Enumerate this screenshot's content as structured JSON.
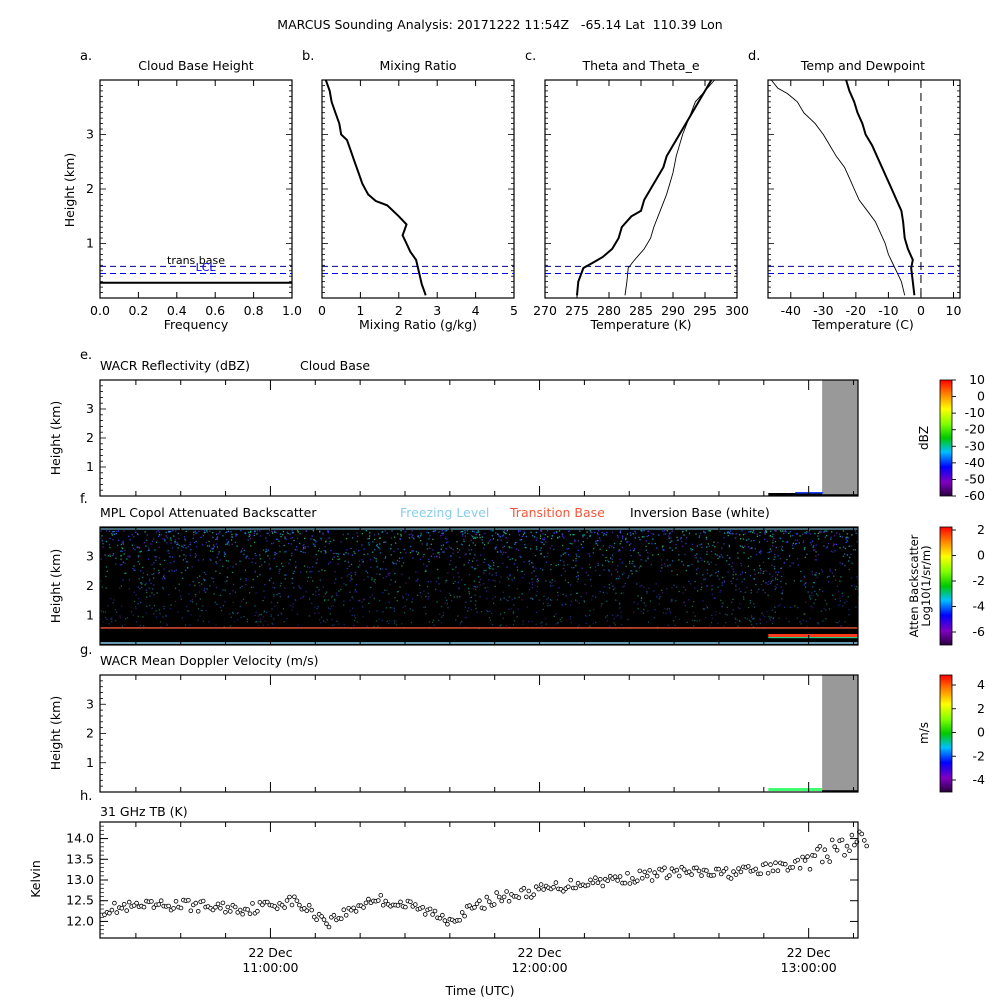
{
  "figure": {
    "title": "MARCUS Sounding Analysis: 20171222 11:54Z   -65.14 Lat  110.39 Lon"
  },
  "colors": {
    "freezing_level": "#87ceeb",
    "transition_base": "#f4563a",
    "inversion_base": "#ffffff",
    "lcl_line": "#0000ff",
    "dark_line": "#00008b",
    "mpl_background": "#000000",
    "missing_data": "#999999"
  },
  "chart_data": [
    {
      "id": "a",
      "panel_letter": "a.",
      "type": "line",
      "title": "Cloud Base Height",
      "xlabel": "Frequency",
      "ylabel": "Height (km)",
      "xlim": [
        0,
        1
      ],
      "ylim": [
        0,
        4
      ],
      "xticks": [
        "0.0",
        "0.2",
        "0.4",
        "0.6",
        "0.8",
        "1.0"
      ],
      "yticks": [
        "1",
        "2",
        "3"
      ],
      "series": [
        {
          "values": [
            [
              0,
              0.28
            ],
            [
              1,
              0.28
            ]
          ]
        }
      ],
      "annotations": [
        {
          "text": "trans base",
          "x": 0.5,
          "y": 0.62,
          "color": "#000000"
        },
        {
          "text": "LCL",
          "x": 0.55,
          "y": 0.5,
          "color": "#0000ff"
        }
      ],
      "reference_lines": [
        {
          "y": 0.58,
          "color": "#00008b",
          "style": "dashed"
        },
        {
          "y": 0.45,
          "color": "#0000ff",
          "style": "dashed"
        }
      ]
    },
    {
      "id": "b",
      "panel_letter": "b.",
      "type": "line",
      "title": "Mixing Ratio",
      "xlabel": "Mixing Ratio (g/kg)",
      "ylabel": "",
      "xlim": [
        0,
        5
      ],
      "ylim": [
        0,
        4
      ],
      "xticks": [
        "0",
        "1",
        "2",
        "3",
        "4",
        "5"
      ],
      "yticks": [],
      "series": [
        {
          "values": [
            [
              2.7,
              0.05
            ],
            [
              2.65,
              0.15
            ],
            [
              2.6,
              0.25
            ],
            [
              2.55,
              0.4
            ],
            [
              2.5,
              0.55
            ],
            [
              2.45,
              0.7
            ],
            [
              2.3,
              0.85
            ],
            [
              2.2,
              1.0
            ],
            [
              2.1,
              1.15
            ],
            [
              2.15,
              1.25
            ],
            [
              2.2,
              1.35
            ],
            [
              2.0,
              1.5
            ],
            [
              1.7,
              1.7
            ],
            [
              1.4,
              1.78
            ],
            [
              1.2,
              1.9
            ],
            [
              1.05,
              2.1
            ],
            [
              0.95,
              2.3
            ],
            [
              0.85,
              2.5
            ],
            [
              0.75,
              2.7
            ],
            [
              0.65,
              2.9
            ],
            [
              0.5,
              3.0
            ],
            [
              0.45,
              3.2
            ],
            [
              0.35,
              3.4
            ],
            [
              0.25,
              3.6
            ],
            [
              0.2,
              3.8
            ],
            [
              0.1,
              4.0
            ]
          ]
        }
      ],
      "reference_lines": [
        {
          "y": 0.58,
          "color": "#00008b",
          "style": "dashed"
        },
        {
          "y": 0.45,
          "color": "#0000ff",
          "style": "dashed"
        }
      ]
    },
    {
      "id": "c",
      "panel_letter": "c.",
      "type": "line",
      "title": "Theta and Theta_e",
      "xlabel": "Temperature (K)",
      "ylabel": "",
      "xlim": [
        270,
        300
      ],
      "ylim": [
        0,
        4
      ],
      "xticks": [
        "270",
        "275",
        "280",
        "285",
        "290",
        "295",
        "300"
      ],
      "yticks": [],
      "series": [
        {
          "values": [
            [
              275.0,
              0.05
            ],
            [
              275.2,
              0.3
            ],
            [
              276.0,
              0.55
            ],
            [
              277.5,
              0.65
            ],
            [
              279.0,
              0.75
            ],
            [
              280.5,
              0.9
            ],
            [
              281.5,
              1.1
            ],
            [
              282.0,
              1.3
            ],
            [
              283.5,
              1.5
            ],
            [
              285.0,
              1.6
            ],
            [
              285.5,
              1.8
            ],
            [
              286.5,
              2.0
            ],
            [
              287.5,
              2.2
            ],
            [
              288.5,
              2.4
            ],
            [
              289.0,
              2.6
            ],
            [
              290.0,
              2.8
            ],
            [
              291.0,
              3.0
            ],
            [
              292.0,
              3.2
            ],
            [
              293.0,
              3.4
            ],
            [
              294.0,
              3.6
            ],
            [
              295.0,
              3.8
            ],
            [
              296.0,
              4.0
            ]
          ]
        },
        {
          "values": [
            [
              282.5,
              0.05
            ],
            [
              282.8,
              0.3
            ],
            [
              283.0,
              0.55
            ],
            [
              284.0,
              0.7
            ],
            [
              285.5,
              0.9
            ],
            [
              286.5,
              1.1
            ],
            [
              287.0,
              1.3
            ],
            [
              288.0,
              1.6
            ],
            [
              289.0,
              1.9
            ],
            [
              289.5,
              2.1
            ],
            [
              290.0,
              2.3
            ],
            [
              290.5,
              2.6
            ],
            [
              291.5,
              3.0
            ],
            [
              292.5,
              3.3
            ],
            [
              293.5,
              3.6
            ],
            [
              295.0,
              3.8
            ],
            [
              296.5,
              4.0
            ]
          ]
        }
      ],
      "reference_lines": [
        {
          "y": 0.58,
          "color": "#00008b",
          "style": "dashed"
        },
        {
          "y": 0.45,
          "color": "#0000ff",
          "style": "dashed"
        }
      ]
    },
    {
      "id": "d",
      "panel_letter": "d.",
      "type": "line",
      "title": "Temp and Dewpoint",
      "xlabel": "Temperature (C)",
      "ylabel": "",
      "xlim": [
        -47,
        12
      ],
      "ylim": [
        0,
        4
      ],
      "xticks": [
        "-40",
        "-30",
        "-20",
        "-10",
        "0",
        "10"
      ],
      "xtick_values": [
        -40,
        -30,
        -20,
        -10,
        0,
        10
      ],
      "yticks": [],
      "series": [
        {
          "values": [
            [
              -2.0,
              0.05
            ],
            [
              -2.5,
              0.3
            ],
            [
              -3.0,
              0.55
            ],
            [
              -2.5,
              0.7
            ],
            [
              -4.0,
              0.9
            ],
            [
              -5.0,
              1.1
            ],
            [
              -5.5,
              1.4
            ],
            [
              -6.0,
              1.6
            ],
            [
              -7.5,
              1.8
            ],
            [
              -9.0,
              2.0
            ],
            [
              -10.5,
              2.2
            ],
            [
              -12.0,
              2.4
            ],
            [
              -13.5,
              2.6
            ],
            [
              -15.0,
              2.8
            ],
            [
              -17.0,
              3.0
            ],
            [
              -18.0,
              3.2
            ],
            [
              -19.5,
              3.4
            ],
            [
              -20.5,
              3.6
            ],
            [
              -22.0,
              3.8
            ],
            [
              -23.0,
              4.0
            ]
          ]
        },
        {
          "values": [
            [
              -5.0,
              0.05
            ],
            [
              -6.0,
              0.3
            ],
            [
              -8.0,
              0.55
            ],
            [
              -10.0,
              0.8
            ],
            [
              -11.0,
              1.0
            ],
            [
              -12.5,
              1.2
            ],
            [
              -14.0,
              1.4
            ],
            [
              -16.5,
              1.6
            ],
            [
              -19.0,
              1.8
            ],
            [
              -20.5,
              2.0
            ],
            [
              -22.0,
              2.2
            ],
            [
              -23.5,
              2.4
            ],
            [
              -26.0,
              2.6
            ],
            [
              -28.0,
              2.8
            ],
            [
              -30.0,
              3.0
            ],
            [
              -32.5,
              3.2
            ],
            [
              -36.0,
              3.4
            ],
            [
              -38.0,
              3.6
            ],
            [
              -41.0,
              3.75
            ],
            [
              -44.0,
              3.85
            ],
            [
              -46.0,
              4.0
            ]
          ]
        }
      ],
      "vline": 0,
      "reference_lines": [
        {
          "y": 0.58,
          "color": "#00008b",
          "style": "dashed"
        },
        {
          "y": 0.45,
          "color": "#0000ff",
          "style": "dashed"
        }
      ]
    },
    {
      "id": "e",
      "panel_letter": "e.",
      "type": "heatmap",
      "title": "WACR Reflectivity (dBZ)",
      "extra_label": "Cloud Base",
      "ylabel": "Height (km)",
      "ylim": [
        0,
        4
      ],
      "yticks": [
        "1",
        "2",
        "3"
      ],
      "missing_after": "13:03",
      "colorbar": {
        "label": "dBZ",
        "ticks": [
          "10",
          "0",
          "-10",
          "-20",
          "-30",
          "-40",
          "-50",
          "-60"
        ]
      }
    },
    {
      "id": "f",
      "panel_letter": "f.",
      "type": "heatmap",
      "title": "MPL Copol Attenuated Backscatter",
      "legend": [
        "Freezing Level",
        "Transition Base",
        "Inversion Base (white)"
      ],
      "ylabel": "Height (km)",
      "ylim": [
        0,
        4
      ],
      "yticks": [
        "1",
        "2",
        "3"
      ],
      "transition_base_km": 0.58,
      "colorbar": {
        "label": "Atten Backscatter",
        "label2": "Log10(1/sr/m)",
        "ticks": [
          "2",
          "0",
          "-2",
          "-4",
          "-6"
        ]
      }
    },
    {
      "id": "g",
      "panel_letter": "g.",
      "type": "heatmap",
      "title": "WACR Mean Doppler Velocity (m/s)",
      "ylabel": "Height (km)",
      "ylim": [
        0,
        4
      ],
      "yticks": [
        "1",
        "2",
        "3"
      ],
      "missing_after": "13:03",
      "colorbar": {
        "label": "m/s",
        "ticks": [
          "4",
          "2",
          "0",
          "-2",
          "-4"
        ]
      }
    },
    {
      "id": "h",
      "panel_letter": "h.",
      "type": "scatter",
      "title": "31 GHz TB (K)",
      "ylabel": "Kelvin",
      "xlabel": "Time (UTC)",
      "ylim": [
        11.6,
        14.4
      ],
      "yticks": [
        "12.0",
        "12.5",
        "13.0",
        "13.5",
        "14.0"
      ],
      "ytick_values": [
        12.0,
        12.5,
        13.0,
        13.5,
        14.0
      ],
      "trend": [
        [
          "10:23",
          12.3
        ],
        [
          "10:40",
          12.4
        ],
        [
          "10:55",
          12.3
        ],
        [
          "11:05",
          12.5
        ],
        [
          "11:13",
          12.0
        ],
        [
          "11:23",
          12.55
        ],
        [
          "11:32",
          12.35
        ],
        [
          "11:40",
          12.05
        ],
        [
          "11:50",
          12.55
        ],
        [
          "12:00",
          12.75
        ],
        [
          "12:10",
          12.95
        ],
        [
          "12:20",
          13.05
        ],
        [
          "12:30",
          13.2
        ],
        [
          "12:40",
          13.15
        ],
        [
          "12:50",
          13.25
        ],
        [
          "13:00",
          13.45
        ],
        [
          "13:07",
          13.8
        ],
        [
          "13:13",
          14.0
        ]
      ],
      "time_ticks": [
        {
          "date": "22 Dec",
          "time": "11:00:00"
        },
        {
          "date": "22 Dec",
          "time": "12:00:00"
        },
        {
          "date": "22 Dec",
          "time": "13:00:00"
        }
      ]
    }
  ]
}
